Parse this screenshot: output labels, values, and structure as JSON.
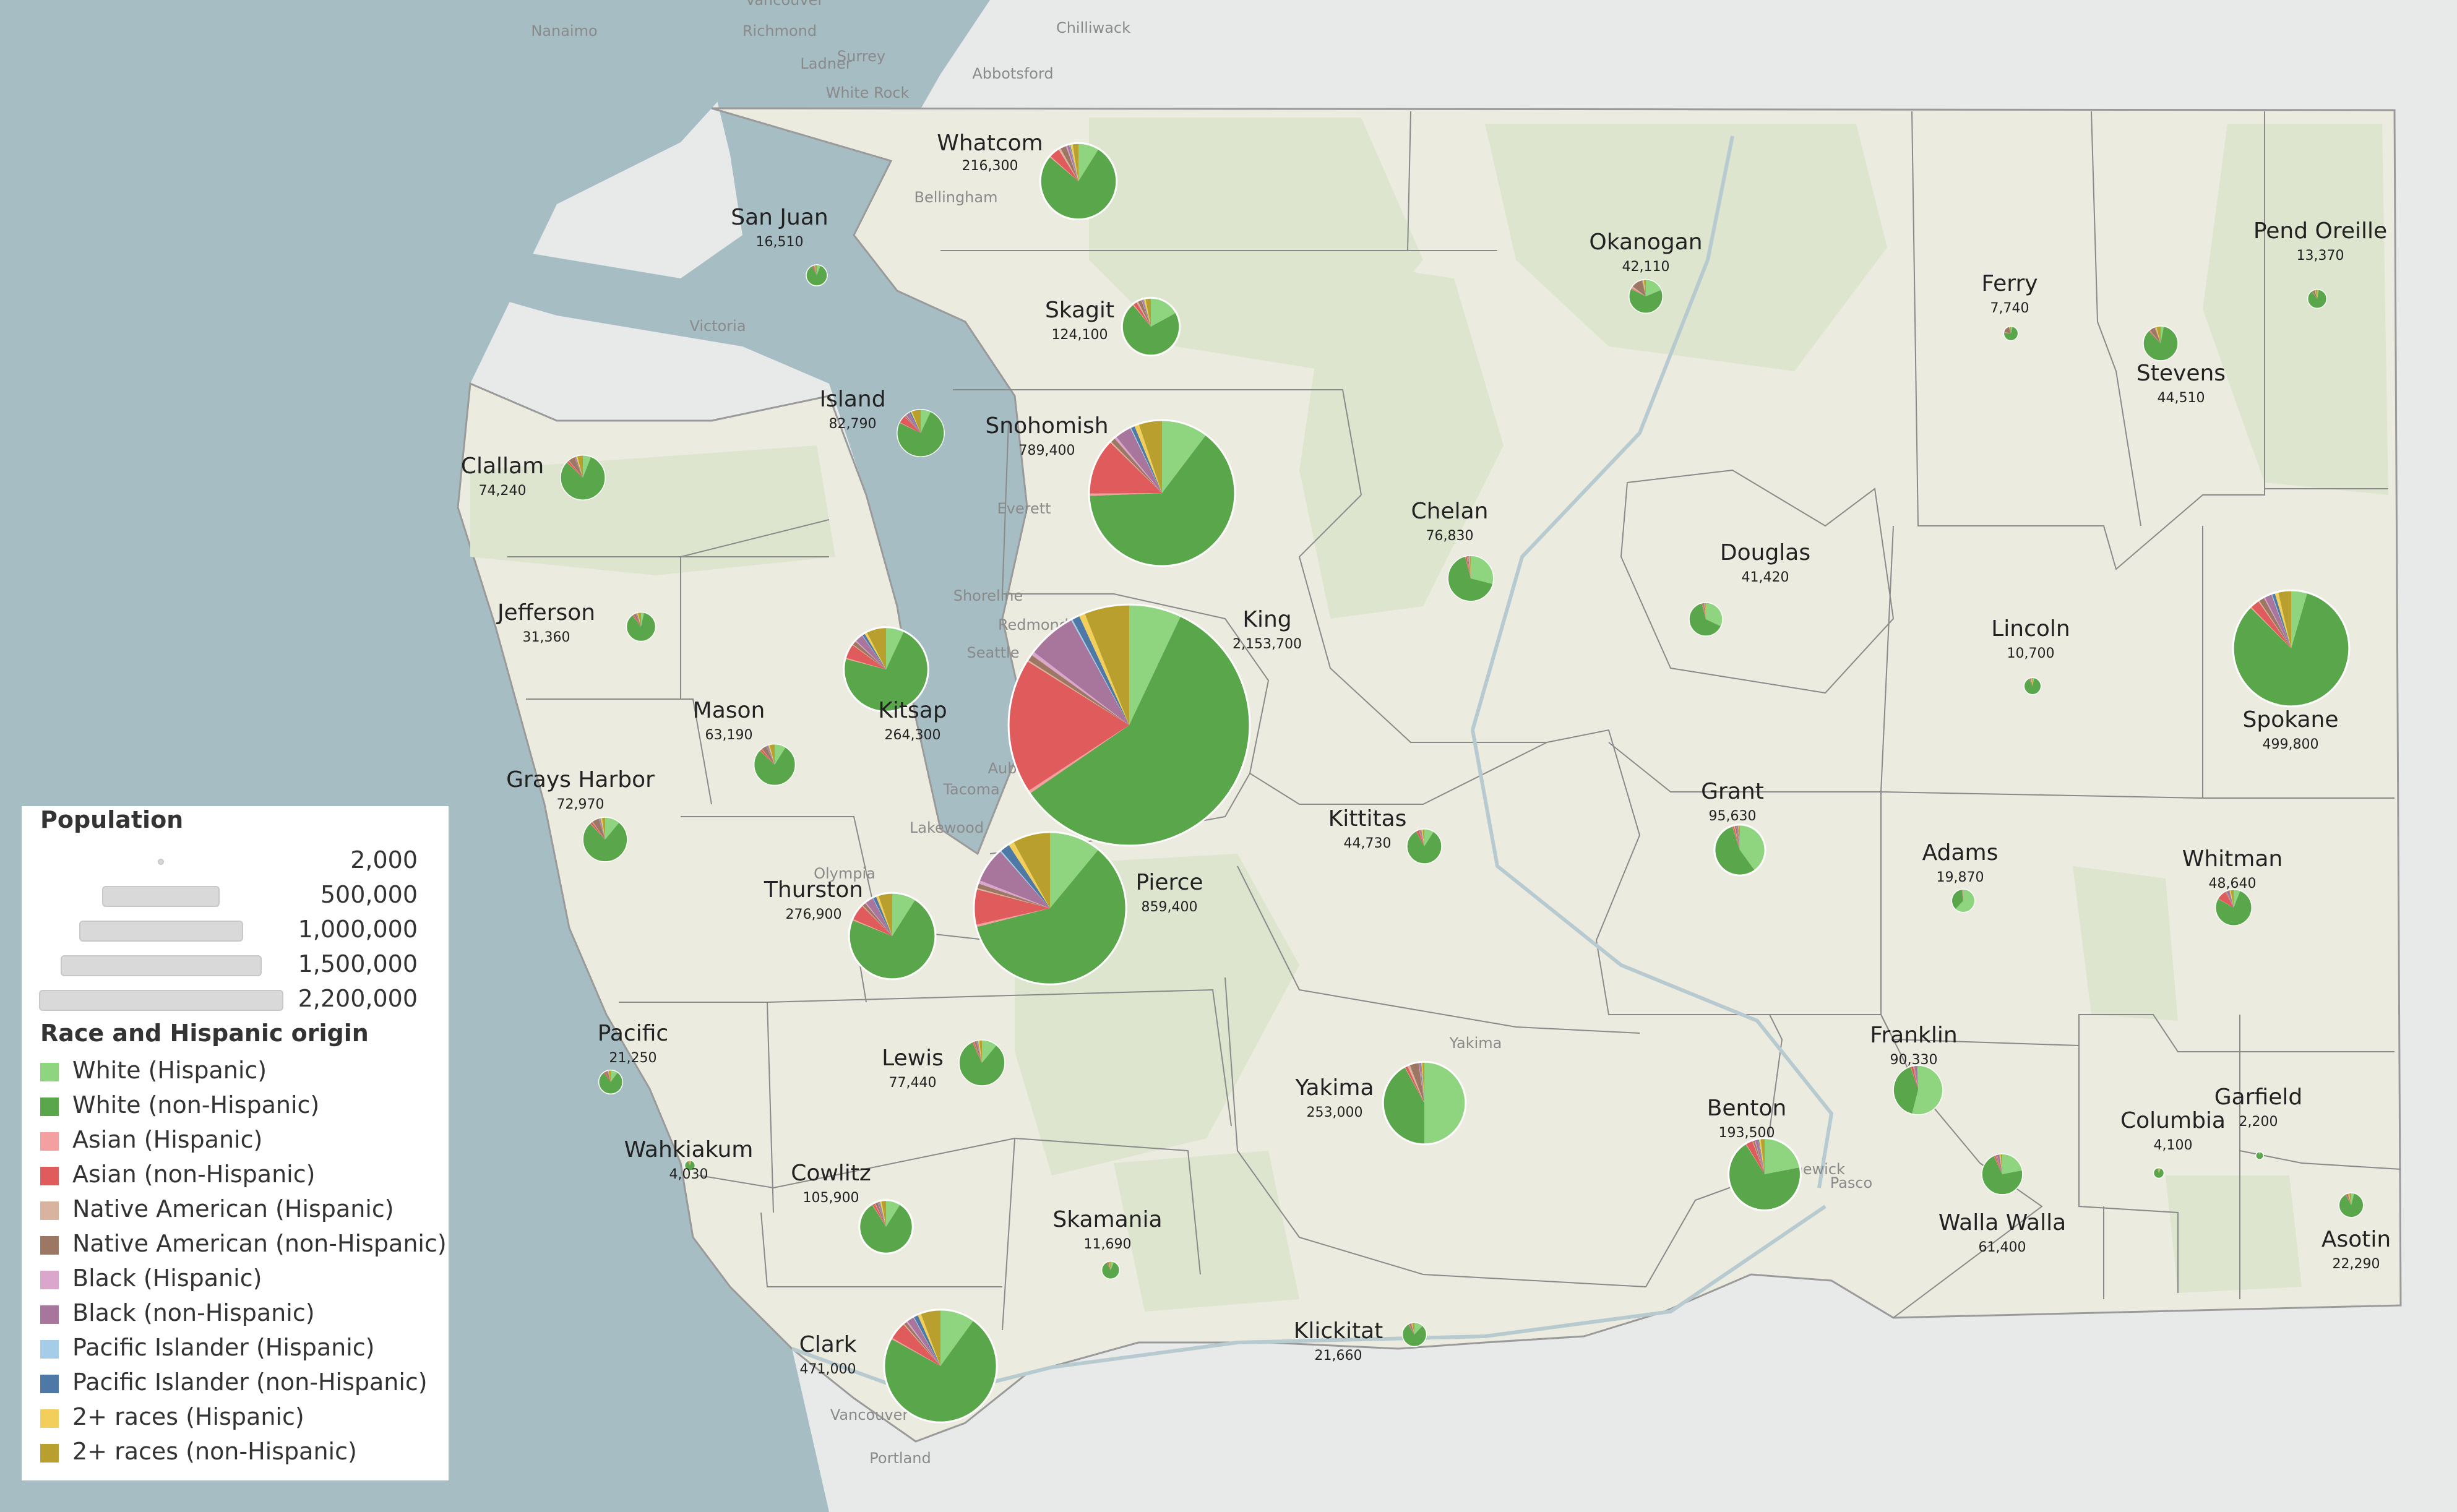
{
  "colors": {
    "White (Hispanic)": "#8fd47f",
    "White (non-Hispanic)": "#5aa64a",
    "Asian (Hispanic)": "#f4a0a0",
    "Asian (non-Hispanic)": "#e05b5b",
    "Native American (Hispanic)": "#d8b3a0",
    "Native American (non-Hispanic)": "#9c7763",
    "Black (Hispanic)": "#dba6cb",
    "Black (non-Hispanic)": "#a8769d",
    "Pacific Islander (Hispanic)": "#a5cde8",
    "Pacific Islander (non-Hispanic)": "#4e79a7",
    "2+ races (Hispanic)": "#f2cf5b",
    "2+ races (non-Hispanic)": "#b9a02e"
  },
  "legend": {
    "size_title": "Population",
    "sizes": [
      {
        "label": "2,000",
        "value": 2000
      },
      {
        "label": "500,000",
        "value": 500000
      },
      {
        "label": "1,000,000",
        "value": 1000000
      },
      {
        "label": "1,500,000",
        "value": 1500000
      },
      {
        "label": "2,200,000",
        "value": 2200000
      }
    ],
    "race_title": "Race and Hispanic origin",
    "races": [
      "White (Hispanic)",
      "White (non-Hispanic)",
      "Asian (Hispanic)",
      "Asian (non-Hispanic)",
      "Native American (Hispanic)",
      "Native American (non-Hispanic)",
      "Black (Hispanic)",
      "Black (non-Hispanic)",
      "Pacific Islander (Hispanic)",
      "Pacific Islander (non-Hispanic)",
      "2+ races (Hispanic)",
      "2+ races (non-Hispanic)"
    ]
  },
  "places": [
    "Nanaimo",
    "Vancouver",
    "Richmond",
    "Surrey",
    "Ladner",
    "Chilliwack",
    "Abbotsford",
    "White Rock",
    "Bellingham",
    "Victoria",
    "Everett",
    "Shoreline",
    "Seattle",
    "Redmond",
    "Auburn",
    "Tacoma",
    "Lakewood",
    "Olympia",
    "Yakima",
    "Kennewick",
    "Pasco",
    "Portland",
    "Vancouver"
  ],
  "counties": [
    {
      "name": "Whatcom",
      "population": "216,300",
      "pop": 216300,
      "shares": [
        0.09,
        0.78,
        0.005,
        0.045,
        0.01,
        0.025,
        0.005,
        0.01,
        0.002,
        0.003,
        0.01,
        0.025
      ]
    },
    {
      "name": "San Juan",
      "population": "16,510",
      "pop": 16510,
      "shares": [
        0.06,
        0.86,
        0.002,
        0.015,
        0.003,
        0.01,
        0.002,
        0.005,
        0.001,
        0.002,
        0.01,
        0.03
      ]
    },
    {
      "name": "Skagit",
      "population": "124,100",
      "pop": 124100,
      "shares": [
        0.17,
        0.72,
        0.005,
        0.02,
        0.01,
        0.02,
        0.003,
        0.008,
        0.002,
        0.002,
        0.01,
        0.03
      ]
    },
    {
      "name": "Okanogan",
      "population": "42,110",
      "pop": 42110,
      "shares": [
        0.19,
        0.64,
        0.003,
        0.008,
        0.02,
        0.11,
        0.002,
        0.004,
        0.001,
        0.002,
        0.01,
        0.02
      ]
    },
    {
      "name": "Ferry",
      "population": "7,740",
      "pop": 7740,
      "shares": [
        0.04,
        0.72,
        0.002,
        0.005,
        0.01,
        0.17,
        0.002,
        0.004,
        0.001,
        0.001,
        0.01,
        0.03
      ]
    },
    {
      "name": "Pend Oreille",
      "population": "13,370",
      "pop": 13370,
      "shares": [
        0.03,
        0.87,
        0.002,
        0.006,
        0.004,
        0.04,
        0.002,
        0.004,
        0.001,
        0.001,
        0.01,
        0.03
      ]
    },
    {
      "name": "Stevens",
      "population": "44,510",
      "pop": 44510,
      "shares": [
        0.03,
        0.85,
        0.002,
        0.008,
        0.004,
        0.05,
        0.002,
        0.004,
        0.001,
        0.001,
        0.01,
        0.04
      ]
    },
    {
      "name": "Island",
      "population": "82,790",
      "pop": 82790,
      "shares": [
        0.07,
        0.75,
        0.005,
        0.05,
        0.003,
        0.008,
        0.005,
        0.025,
        0.002,
        0.01,
        0.01,
        0.06
      ]
    },
    {
      "name": "Snohomish",
      "population": "789,400",
      "pop": 789400,
      "shares": [
        0.1,
        0.62,
        0.005,
        0.12,
        0.003,
        0.01,
        0.005,
        0.035,
        0.002,
        0.008,
        0.01,
        0.05
      ]
    },
    {
      "name": "Clallam",
      "population": "74,240",
      "pop": 74240,
      "shares": [
        0.06,
        0.81,
        0.003,
        0.015,
        0.004,
        0.045,
        0.002,
        0.008,
        0.001,
        0.002,
        0.01,
        0.04
      ]
    },
    {
      "name": "Chelan",
      "population": "76,830",
      "pop": 76830,
      "shares": [
        0.29,
        0.67,
        0.002,
        0.01,
        0.003,
        0.008,
        0.002,
        0.004,
        0.001,
        0.001,
        0.004,
        0.006
      ]
    },
    {
      "name": "Douglas",
      "population": "41,420",
      "pop": 41420,
      "shares": [
        0.32,
        0.64,
        0.002,
        0.008,
        0.003,
        0.01,
        0.002,
        0.004,
        0.001,
        0.001,
        0.004,
        0.006
      ]
    },
    {
      "name": "Jefferson",
      "population": "31,360",
      "pop": 31360,
      "shares": [
        0.035,
        0.86,
        0.002,
        0.015,
        0.003,
        0.025,
        0.002,
        0.01,
        0.001,
        0.002,
        0.01,
        0.035
      ]
    },
    {
      "name": "King",
      "population": "2,153,700",
      "pop": 2153700,
      "shares": [
        0.07,
        0.58,
        0.004,
        0.18,
        0.002,
        0.008,
        0.005,
        0.065,
        0.002,
        0.01,
        0.008,
        0.06
      ]
    },
    {
      "name": "Lincoln",
      "population": "10,700",
      "pop": 10700,
      "shares": [
        0.03,
        0.9,
        0.002,
        0.006,
        0.003,
        0.02,
        0.002,
        0.004,
        0.001,
        0.001,
        0.01,
        0.02
      ]
    },
    {
      "name": "Spokane",
      "population": "499,800",
      "pop": 499800,
      "shares": [
        0.045,
        0.83,
        0.003,
        0.025,
        0.003,
        0.015,
        0.003,
        0.02,
        0.002,
        0.008,
        0.01,
        0.036
      ]
    },
    {
      "name": "Kitsap",
      "population": "264,300",
      "pop": 264300,
      "shares": [
        0.07,
        0.72,
        0.005,
        0.055,
        0.003,
        0.015,
        0.004,
        0.03,
        0.002,
        0.01,
        0.01,
        0.076
      ]
    },
    {
      "name": "Mason",
      "population": "63,190",
      "pop": 63190,
      "shares": [
        0.09,
        0.78,
        0.003,
        0.015,
        0.004,
        0.04,
        0.002,
        0.01,
        0.002,
        0.004,
        0.01,
        0.04
      ]
    },
    {
      "name": "Grant",
      "population": "95,630",
      "pop": 95630,
      "shares": [
        0.4,
        0.55,
        0.002,
        0.01,
        0.005,
        0.01,
        0.002,
        0.008,
        0.001,
        0.002,
        0.004,
        0.006
      ]
    },
    {
      "name": "Grays Harbor",
      "population": "72,970",
      "pop": 72970,
      "shares": [
        0.11,
        0.77,
        0.003,
        0.015,
        0.005,
        0.05,
        0.002,
        0.008,
        0.001,
        0.003,
        0.01,
        0.023
      ]
    },
    {
      "name": "Kittitas",
      "population": "44,730",
      "pop": 44730,
      "shares": [
        0.09,
        0.83,
        0.002,
        0.025,
        0.003,
        0.008,
        0.002,
        0.01,
        0.001,
        0.002,
        0.01,
        0.017
      ]
    },
    {
      "name": "Adams",
      "population": "19,870",
      "pop": 19870,
      "shares": [
        0.62,
        0.36,
        0.001,
        0.004,
        0.002,
        0.004,
        0.001,
        0.002,
        0.001,
        0.001,
        0.002,
        0.002
      ]
    },
    {
      "name": "Whitman",
      "population": "48,640",
      "pop": 48640,
      "shares": [
        0.06,
        0.77,
        0.003,
        0.09,
        0.002,
        0.006,
        0.003,
        0.025,
        0.001,
        0.003,
        0.01,
        0.027
      ]
    },
    {
      "name": "Thurston",
      "population": "276,900",
      "pop": 276900,
      "shares": [
        0.09,
        0.72,
        0.005,
        0.06,
        0.003,
        0.012,
        0.004,
        0.03,
        0.002,
        0.012,
        0.01,
        0.052
      ]
    },
    {
      "name": "Pierce",
      "population": "859,400",
      "pop": 859400,
      "shares": [
        0.11,
        0.6,
        0.005,
        0.075,
        0.003,
        0.01,
        0.007,
        0.075,
        0.003,
        0.02,
        0.012,
        0.08
      ]
    },
    {
      "name": "Pacific",
      "population": "21,250",
      "pop": 21250,
      "shares": [
        0.1,
        0.8,
        0.003,
        0.02,
        0.004,
        0.025,
        0.002,
        0.005,
        0.001,
        0.002,
        0.01,
        0.028
      ]
    },
    {
      "name": "Lewis",
      "population": "77,440",
      "pop": 77440,
      "shares": [
        0.11,
        0.82,
        0.002,
        0.01,
        0.003,
        0.015,
        0.002,
        0.005,
        0.001,
        0.003,
        0.01,
        0.019
      ]
    },
    {
      "name": "Yakima",
      "population": "253,000",
      "pop": 253000,
      "shares": [
        0.5,
        0.42,
        0.002,
        0.01,
        0.01,
        0.035,
        0.002,
        0.006,
        0.001,
        0.002,
        0.004,
        0.008
      ]
    },
    {
      "name": "Franklin",
      "population": "90,330",
      "pop": 90330,
      "shares": [
        0.54,
        0.41,
        0.002,
        0.015,
        0.003,
        0.004,
        0.002,
        0.015,
        0.001,
        0.002,
        0.002,
        0.004
      ]
    },
    {
      "name": "Garfield",
      "population": "2,200",
      "pop": 2200,
      "shares": [
        0.04,
        0.93,
        0.002,
        0.004,
        0.002,
        0.005,
        0.002,
        0.002,
        0.001,
        0.001,
        0.004,
        0.007
      ]
    },
    {
      "name": "Wahkiakum",
      "population": "4,030",
      "pop": 4030,
      "shares": [
        0.05,
        0.88,
        0.002,
        0.01,
        0.003,
        0.015,
        0.002,
        0.004,
        0.001,
        0.002,
        0.01,
        0.021
      ]
    },
    {
      "name": "Benton",
      "population": "193,500",
      "pop": 193500,
      "shares": [
        0.22,
        0.69,
        0.003,
        0.03,
        0.003,
        0.008,
        0.003,
        0.013,
        0.001,
        0.003,
        0.008,
        0.018
      ]
    },
    {
      "name": "Columbia",
      "population": "4,100",
      "pop": 4100,
      "shares": [
        0.07,
        0.88,
        0.002,
        0.006,
        0.003,
        0.01,
        0.002,
        0.003,
        0.001,
        0.001,
        0.005,
        0.017
      ]
    },
    {
      "name": "Cowlitz",
      "population": "105,900",
      "pop": 105900,
      "shares": [
        0.09,
        0.82,
        0.003,
        0.015,
        0.004,
        0.015,
        0.002,
        0.008,
        0.001,
        0.004,
        0.01,
        0.028
      ]
    },
    {
      "name": "Walla Walla",
      "population": "61,400",
      "pop": 61400,
      "shares": [
        0.22,
        0.71,
        0.002,
        0.013,
        0.003,
        0.008,
        0.002,
        0.018,
        0.001,
        0.002,
        0.008,
        0.013
      ]
    },
    {
      "name": "Asotin",
      "population": "22,290",
      "pop": 22290,
      "shares": [
        0.04,
        0.88,
        0.002,
        0.008,
        0.003,
        0.018,
        0.002,
        0.006,
        0.001,
        0.002,
        0.01,
        0.028
      ]
    },
    {
      "name": "Skamania",
      "population": "11,690",
      "pop": 11690,
      "shares": [
        0.06,
        0.86,
        0.002,
        0.01,
        0.003,
        0.02,
        0.002,
        0.004,
        0.001,
        0.002,
        0.01,
        0.026
      ]
    },
    {
      "name": "Klickitat",
      "population": "21,660",
      "pop": 21660,
      "shares": [
        0.12,
        0.79,
        0.002,
        0.008,
        0.004,
        0.025,
        0.002,
        0.004,
        0.001,
        0.002,
        0.01,
        0.032
      ]
    },
    {
      "name": "Clark",
      "population": "471,000",
      "pop": 471000,
      "shares": [
        0.1,
        0.73,
        0.004,
        0.05,
        0.003,
        0.008,
        0.004,
        0.02,
        0.002,
        0.012,
        0.01,
        0.057
      ]
    }
  ]
}
